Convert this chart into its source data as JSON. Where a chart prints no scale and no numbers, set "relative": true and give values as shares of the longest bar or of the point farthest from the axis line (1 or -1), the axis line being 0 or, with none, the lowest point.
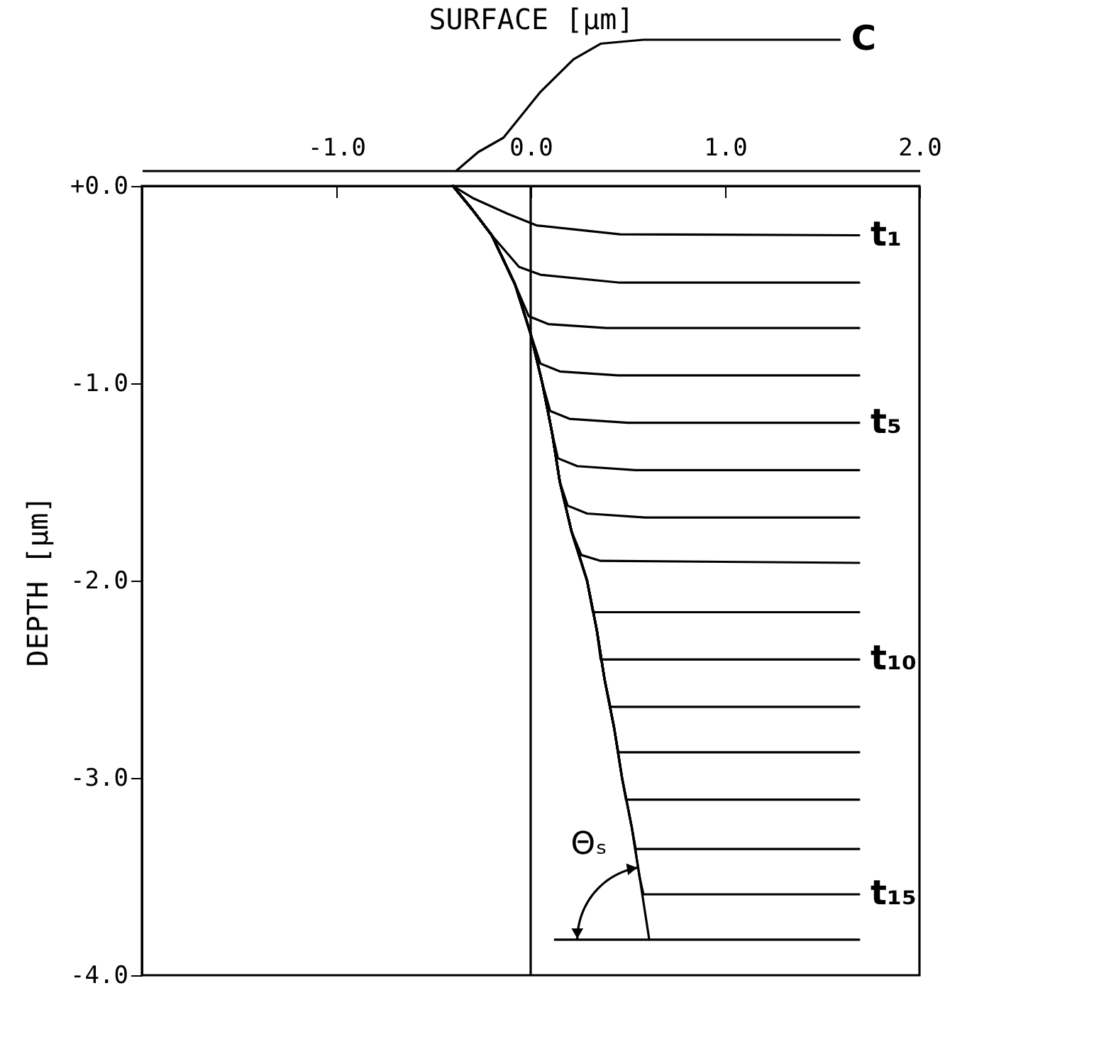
{
  "chart_data": [
    {
      "type": "line",
      "xlabel": "SURFACE [µm]",
      "relative": true,
      "xlim": [
        -2,
        2
      ],
      "xticks": [
        {
          "value": -1,
          "label": "-1.0"
        },
        {
          "value": 0,
          "label": "0.0"
        },
        {
          "value": 1,
          "label": "1.0"
        },
        {
          "value": 2,
          "label": "2.0"
        }
      ],
      "series": [
        {
          "name": "C",
          "color": "#000000",
          "x": [
            -0.38,
            -0.27,
            -0.14,
            0.05,
            0.22,
            0.36,
            0.58,
            1.59
          ],
          "values": [
            0,
            0.14,
            0.25,
            0.6,
            0.85,
            0.97,
            1,
            1
          ]
        }
      ]
    },
    {
      "type": "line",
      "ylabel": "DEPTH [µm]",
      "xlim": [
        -2,
        2
      ],
      "ylim": [
        -4,
        0
      ],
      "tick_labels": "y",
      "xticks": [
        {
          "value": -1,
          "label": null
        },
        {
          "value": 0,
          "label": null
        },
        {
          "value": 1,
          "label": null
        },
        {
          "value": 2,
          "label": null
        }
      ],
      "yticks": [
        {
          "value": 0,
          "label": "+0.0"
        },
        {
          "value": -1,
          "label": "-1.0"
        },
        {
          "value": -2,
          "label": "-2.0"
        },
        {
          "value": -3,
          "label": "-3.0"
        },
        {
          "value": -4,
          "label": "-4.0"
        }
      ],
      "ref_lines": [
        {
          "axis": "x",
          "value": 0,
          "color": "#000000"
        }
      ],
      "annotations": [
        "Θₛ"
      ],
      "series": [
        {
          "name": "t₁",
          "color": "#000000",
          "x": [
            -0.4,
            -0.3,
            -0.12,
            0.03,
            0.46,
            1.69
          ],
          "values": [
            0,
            -0.06,
            -0.14,
            -0.2,
            -0.245,
            -0.25
          ]
        },
        {
          "color": "#000000",
          "x": [
            -0.4,
            -0.3,
            -0.2,
            -0.06,
            0.05,
            0.46,
            1.69
          ],
          "values": [
            0,
            -0.12,
            -0.25,
            -0.41,
            -0.45,
            -0.49,
            -0.49
          ]
        },
        {
          "color": "#000000",
          "x": [
            -0.4,
            -0.3,
            -0.2,
            -0.08,
            -0.01,
            0.09,
            0.39,
            1.69
          ],
          "values": [
            0,
            -0.12,
            -0.25,
            -0.5,
            -0.66,
            -0.7,
            -0.72,
            -0.72
          ]
        },
        {
          "color": "#000000",
          "x": [
            -0.4,
            -0.3,
            -0.2,
            -0.08,
            0,
            0.05,
            0.15,
            0.45,
            1.69
          ],
          "values": [
            0,
            -0.12,
            -0.25,
            -0.5,
            -0.75,
            -0.9,
            -0.94,
            -0.96,
            -0.96
          ]
        },
        {
          "name": "t₅",
          "color": "#000000",
          "x": [
            -0.4,
            -0.3,
            -0.2,
            -0.08,
            0,
            0.06,
            0.1,
            0.2,
            0.5,
            1.69
          ],
          "values": [
            0,
            -0.12,
            -0.25,
            -0.5,
            -0.75,
            -1,
            -1.14,
            -1.18,
            -1.2,
            -1.2
          ]
        },
        {
          "color": "#000000",
          "x": [
            -0.4,
            -0.3,
            -0.2,
            -0.08,
            0,
            0.06,
            0.11,
            0.14,
            0.24,
            0.54,
            1.69
          ],
          "values": [
            0,
            -0.12,
            -0.25,
            -0.5,
            -0.75,
            -1,
            -1.25,
            -1.38,
            -1.42,
            -1.44,
            -1.44
          ]
        },
        {
          "color": "#000000",
          "x": [
            -0.4,
            -0.3,
            -0.2,
            -0.08,
            0,
            0.06,
            0.11,
            0.15,
            0.19,
            0.29,
            0.59,
            1.69
          ],
          "values": [
            0,
            -0.12,
            -0.25,
            -0.5,
            -0.75,
            -1,
            -1.25,
            -1.5,
            -1.62,
            -1.66,
            -1.68,
            -1.68
          ]
        },
        {
          "color": "#000000",
          "x": [
            -0.4,
            -0.3,
            -0.2,
            -0.08,
            0,
            0.06,
            0.11,
            0.15,
            0.21,
            0.26,
            0.36,
            1.69
          ],
          "values": [
            0,
            -0.12,
            -0.25,
            -0.5,
            -0.75,
            -1,
            -1.25,
            -1.5,
            -1.75,
            -1.87,
            -1.9,
            -1.91
          ]
        },
        {
          "color": "#000000",
          "x": [
            -0.4,
            -0.3,
            -0.2,
            -0.08,
            0,
            0.06,
            0.11,
            0.15,
            0.21,
            0.29,
            0.32,
            1.69
          ],
          "values": [
            0,
            -0.12,
            -0.25,
            -0.5,
            -0.75,
            -1,
            -1.25,
            -1.5,
            -1.75,
            -2,
            -2.16,
            -2.16
          ]
        },
        {
          "name": "t₁₀",
          "color": "#000000",
          "x": [
            -0.4,
            -0.3,
            -0.2,
            -0.08,
            0,
            0.06,
            0.11,
            0.15,
            0.21,
            0.29,
            0.34,
            0.36,
            1.69
          ],
          "values": [
            0,
            -0.12,
            -0.25,
            -0.5,
            -0.75,
            -1,
            -1.25,
            -1.5,
            -1.75,
            -2,
            -2.25,
            -2.4,
            -2.4
          ]
        },
        {
          "color": "#000000",
          "x": [
            -0.4,
            -0.3,
            -0.2,
            -0.08,
            0,
            0.06,
            0.11,
            0.15,
            0.21,
            0.29,
            0.34,
            0.38,
            0.41,
            1.69
          ],
          "values": [
            0,
            -0.12,
            -0.25,
            -0.5,
            -0.75,
            -1,
            -1.25,
            -1.5,
            -1.75,
            -2,
            -2.25,
            -2.5,
            -2.64,
            -2.64
          ]
        },
        {
          "color": "#000000",
          "x": [
            -0.4,
            -0.3,
            -0.2,
            -0.08,
            0,
            0.06,
            0.11,
            0.15,
            0.21,
            0.29,
            0.34,
            0.38,
            0.43,
            0.45,
            1.69
          ],
          "values": [
            0,
            -0.12,
            -0.25,
            -0.5,
            -0.75,
            -1,
            -1.25,
            -1.5,
            -1.75,
            -2,
            -2.25,
            -2.5,
            -2.75,
            -2.87,
            -2.87
          ]
        },
        {
          "color": "#000000",
          "x": [
            -0.4,
            -0.3,
            -0.2,
            -0.08,
            0,
            0.06,
            0.11,
            0.15,
            0.21,
            0.29,
            0.34,
            0.38,
            0.43,
            0.47,
            0.49,
            1.69
          ],
          "values": [
            0,
            -0.12,
            -0.25,
            -0.5,
            -0.75,
            -1,
            -1.25,
            -1.5,
            -1.75,
            -2,
            -2.25,
            -2.5,
            -2.75,
            -3,
            -3.11,
            -3.11
          ]
        },
        {
          "color": "#000000",
          "x": [
            -0.4,
            -0.3,
            -0.2,
            -0.08,
            0,
            0.06,
            0.11,
            0.15,
            0.21,
            0.29,
            0.34,
            0.38,
            0.43,
            0.47,
            0.52,
            0.54,
            1.69
          ],
          "values": [
            0,
            -0.12,
            -0.25,
            -0.5,
            -0.75,
            -1,
            -1.25,
            -1.5,
            -1.75,
            -2,
            -2.25,
            -2.5,
            -2.75,
            -3,
            -3.25,
            -3.36,
            -3.36
          ]
        },
        {
          "name": "t₁₅",
          "color": "#000000",
          "x": [
            -0.4,
            -0.3,
            -0.2,
            -0.08,
            0,
            0.06,
            0.11,
            0.15,
            0.21,
            0.29,
            0.34,
            0.38,
            0.43,
            0.47,
            0.52,
            0.56,
            0.58,
            1.69
          ],
          "values": [
            0,
            -0.12,
            -0.25,
            -0.5,
            -0.75,
            -1,
            -1.25,
            -1.5,
            -1.75,
            -2,
            -2.25,
            -2.5,
            -2.75,
            -3,
            -3.25,
            -3.5,
            -3.59,
            -3.59
          ]
        },
        {
          "color": "#000000",
          "x": [
            -0.4,
            -0.3,
            -0.2,
            -0.08,
            0,
            0.06,
            0.11,
            0.15,
            0.21,
            0.29,
            0.34,
            0.38,
            0.43,
            0.47,
            0.52,
            0.56,
            0.61,
            1.69
          ],
          "values": [
            0,
            -0.12,
            -0.25,
            -0.5,
            -0.75,
            -1,
            -1.25,
            -1.5,
            -1.75,
            -2,
            -2.25,
            -2.5,
            -2.75,
            -3,
            -3.25,
            -3.5,
            -3.82,
            -3.82
          ]
        }
      ]
    }
  ]
}
